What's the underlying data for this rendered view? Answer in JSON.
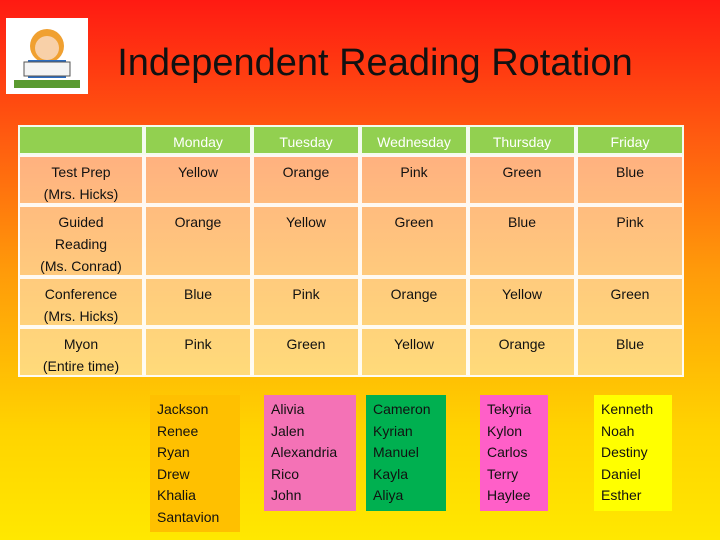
{
  "title": "Independent Reading Rotation",
  "table": {
    "header": [
      "Monday",
      "Tuesday",
      "Wednesday",
      "Thursday",
      "Friday"
    ],
    "rows": [
      [
        "Test Prep\n(Mrs. Hicks)",
        "Yellow",
        "Orange",
        "Pink",
        "Green",
        "Blue"
      ],
      [
        "Guided\nReading\n(Ms. Conrad)",
        "Orange",
        "Yellow",
        "Green",
        "Blue",
        "Pink"
      ],
      [
        "Conference\n(Mrs. Hicks)",
        "Blue",
        "Pink",
        "Orange",
        "Yellow",
        "Green"
      ],
      [
        "Myon\n(Entire time)",
        "Pink",
        "Green",
        "Yellow",
        "Orange",
        "Blue"
      ]
    ]
  },
  "groups": [
    {
      "color": "#ffc000",
      "names": [
        "Jackson",
        "Renee",
        "Ryan",
        "Drew",
        "Khalia",
        "Santavion"
      ]
    },
    {
      "color": "#f472b6",
      "names": [
        "Alivia",
        "Jalen",
        "Alexandria",
        "Rico",
        "John"
      ]
    },
    {
      "color": "#00b050",
      "names": [
        "Cameron",
        "Kyrian",
        "Manuel",
        "Kayla",
        "Aliya"
      ]
    },
    {
      "color": "#ff5fc8",
      "names": [
        "Tekyria",
        "Kylon",
        "Carlos",
        "Terry",
        "Haylee"
      ]
    },
    {
      "color": "#ffff00",
      "names": [
        "Kenneth",
        "Noah",
        "Destiny",
        "Daniel",
        "Esther"
      ]
    }
  ]
}
